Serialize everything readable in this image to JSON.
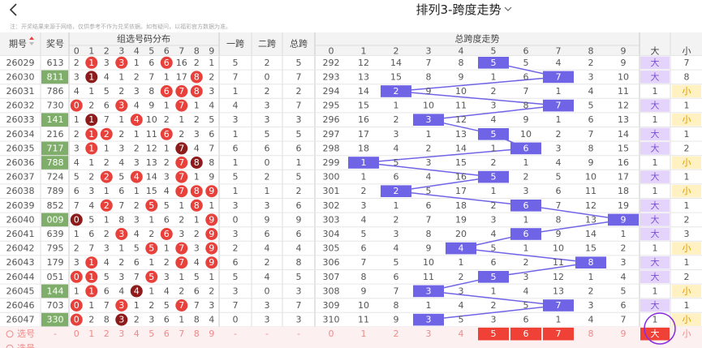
{
  "header": {
    "title": "排列3-跨度走势",
    "note": "注：开奖结果来源于网络，仅供参考不作为兑奖依据。如有疑问，以福彩官方数据为准。"
  },
  "table": {
    "columns": {
      "issue": "期号",
      "award": "奖号",
      "dist": "组选号码分布",
      "kua1": "一跨",
      "kua2": "二跨",
      "kua": "总跨",
      "trend": "总跨度走势",
      "big": "大",
      "small": "小"
    },
    "dist_header": [
      0,
      1,
      2,
      3,
      4,
      5,
      6,
      7,
      8,
      9
    ],
    "trend_header": [
      0,
      1,
      2,
      3,
      4,
      5,
      6,
      7,
      8,
      9
    ],
    "rows": [
      {
        "issue": "26029",
        "award": "613",
        "dist": [
          2,
          1,
          3,
          3,
          1,
          6,
          6,
          16,
          2,
          1
        ],
        "kua1": 5,
        "kua2": 2,
        "kua": 5,
        "trend": [
          292,
          12,
          14,
          7,
          8,
          5,
          5,
          4,
          2,
          9
        ],
        "big": "大",
        "small": 7
      },
      {
        "issue": "26030",
        "award": "811",
        "dist": [
          3,
          1,
          4,
          1,
          2,
          7,
          1,
          17,
          8,
          2
        ],
        "kua1": 7,
        "kua2": 0,
        "kua": 7,
        "trend": [
          293,
          13,
          15,
          8,
          9,
          1,
          6,
          7,
          3,
          10
        ],
        "big": "大",
        "small": 8
      },
      {
        "issue": "26031",
        "award": "786",
        "dist": [
          4,
          1,
          5,
          2,
          3,
          8,
          6,
          7,
          8,
          3
        ],
        "kua1": 1,
        "kua2": 2,
        "kua": 2,
        "trend": [
          294,
          14,
          2,
          9,
          10,
          2,
          7,
          1,
          4,
          11
        ],
        "big": 1,
        "small": "小"
      },
      {
        "issue": "26032",
        "award": "730",
        "dist": [
          0,
          2,
          6,
          3,
          4,
          9,
          1,
          7,
          1,
          4
        ],
        "kua1": 4,
        "kua2": 3,
        "kua": 7,
        "trend": [
          295,
          15,
          1,
          10,
          11,
          3,
          8,
          7,
          5,
          12
        ],
        "big": "大",
        "small": 1
      },
      {
        "issue": "26033",
        "award": "141",
        "dist": [
          1,
          1,
          7,
          1,
          4,
          10,
          2,
          1,
          2,
          5
        ],
        "kua1": 3,
        "kua2": 3,
        "kua": 3,
        "trend": [
          296,
          16,
          2,
          3,
          12,
          4,
          9,
          1,
          6,
          13
        ],
        "big": 1,
        "small": "小"
      },
      {
        "issue": "26034",
        "award": "216",
        "dist": [
          2,
          1,
          2,
          2,
          1,
          11,
          6,
          2,
          3,
          6
        ],
        "kua1": 1,
        "kua2": 5,
        "kua": 5,
        "trend": [
          297,
          17,
          3,
          1,
          13,
          5,
          10,
          2,
          7,
          14
        ],
        "big": "大",
        "small": 1
      },
      {
        "issue": "26035",
        "award": "717",
        "dist": [
          3,
          1,
          1,
          3,
          2,
          12,
          1,
          7,
          4,
          7
        ],
        "kua1": 6,
        "kua2": 6,
        "kua": 6,
        "trend": [
          298,
          18,
          4,
          2,
          14,
          1,
          6,
          3,
          8,
          15
        ],
        "big": "大",
        "small": 2
      },
      {
        "issue": "26036",
        "award": "788",
        "dist": [
          4,
          1,
          2,
          4,
          3,
          13,
          2,
          7,
          8,
          8
        ],
        "kua1": 1,
        "kua2": 0,
        "kua": 1,
        "trend": [
          299,
          1,
          5,
          3,
          15,
          2,
          1,
          4,
          9,
          16
        ],
        "big": 1,
        "small": "小"
      },
      {
        "issue": "26037",
        "award": "724",
        "dist": [
          5,
          2,
          2,
          5,
          4,
          14,
          3,
          7,
          1,
          9
        ],
        "kua1": 5,
        "kua2": 2,
        "kua": 5,
        "trend": [
          300,
          1,
          6,
          4,
          16,
          5,
          2,
          5,
          10,
          17
        ],
        "big": "大",
        "small": 1
      },
      {
        "issue": "26038",
        "award": "789",
        "dist": [
          6,
          3,
          1,
          6,
          1,
          15,
          4,
          7,
          8,
          9
        ],
        "kua1": 1,
        "kua2": 1,
        "kua": 2,
        "trend": [
          301,
          2,
          2,
          5,
          17,
          1,
          3,
          6,
          11,
          18
        ],
        "big": 1,
        "small": "小"
      },
      {
        "issue": "26039",
        "award": "852",
        "dist": [
          7,
          4,
          2,
          7,
          2,
          5,
          5,
          1,
          8,
          1
        ],
        "kua1": 3,
        "kua2": 3,
        "kua": 6,
        "trend": [
          302,
          3,
          1,
          6,
          18,
          2,
          6,
          7,
          12,
          19
        ],
        "big": "大",
        "small": 1
      },
      {
        "issue": "26040",
        "award": "009",
        "dist": [
          0,
          5,
          1,
          8,
          3,
          1,
          6,
          2,
          1,
          9
        ],
        "kua1": 0,
        "kua2": 9,
        "kua": 9,
        "trend": [
          303,
          4,
          2,
          7,
          19,
          3,
          1,
          8,
          13,
          9
        ],
        "big": "大",
        "small": 2
      },
      {
        "issue": "26041",
        "award": "639",
        "dist": [
          1,
          6,
          2,
          3,
          4,
          2,
          6,
          3,
          2,
          9
        ],
        "kua1": 3,
        "kua2": 6,
        "kua": 6,
        "trend": [
          304,
          5,
          3,
          8,
          20,
          4,
          6,
          9,
          14,
          1
        ],
        "big": "大",
        "small": 3
      },
      {
        "issue": "26042",
        "award": "795",
        "dist": [
          2,
          7,
          3,
          1,
          5,
          5,
          1,
          7,
          3,
          9
        ],
        "kua1": 2,
        "kua2": 4,
        "kua": 4,
        "trend": [
          305,
          6,
          4,
          9,
          4,
          5,
          1,
          10,
          15,
          2
        ],
        "big": 1,
        "small": "小"
      },
      {
        "issue": "26043",
        "award": "179",
        "dist": [
          3,
          1,
          4,
          2,
          6,
          1,
          2,
          7,
          4,
          9
        ],
        "kua1": 6,
        "kua2": 2,
        "kua": 8,
        "trend": [
          306,
          7,
          5,
          10,
          1,
          6,
          2,
          11,
          8,
          3
        ],
        "big": "大",
        "small": 1
      },
      {
        "issue": "26044",
        "award": "051",
        "dist": [
          0,
          1,
          5,
          3,
          7,
          5,
          3,
          1,
          5,
          1
        ],
        "kua1": 5,
        "kua2": 4,
        "kua": 5,
        "trend": [
          307,
          8,
          6,
          11,
          2,
          5,
          3,
          12,
          1,
          4
        ],
        "big": "大",
        "small": 2
      },
      {
        "issue": "26045",
        "award": "144",
        "dist": [
          1,
          1,
          6,
          4,
          4,
          1,
          4,
          2,
          6,
          2
        ],
        "kua1": 3,
        "kua2": 0,
        "kua": 3,
        "trend": [
          308,
          9,
          7,
          3,
          3,
          1,
          4,
          13,
          2,
          5
        ],
        "big": 1,
        "small": "小"
      },
      {
        "issue": "26046",
        "award": "703",
        "dist": [
          0,
          1,
          7,
          3,
          1,
          2,
          5,
          7,
          7,
          3
        ],
        "kua1": 7,
        "kua2": 3,
        "kua": 7,
        "trend": [
          309,
          10,
          8,
          1,
          4,
          2,
          5,
          7,
          3,
          6
        ],
        "big": "大",
        "small": 1
      },
      {
        "issue": "26047",
        "award": "330",
        "dist": [
          0,
          2,
          8,
          3,
          2,
          3,
          6,
          1,
          8,
          4
        ],
        "kua1": 0,
        "kua2": 3,
        "kua": 3,
        "trend": [
          310,
          11,
          9,
          3,
          5,
          3,
          6,
          1,
          4,
          7
        ],
        "big": 1,
        "small": "小"
      }
    ],
    "select_row": {
      "label": "选号",
      "award": "-",
      "dist": [
        0,
        1,
        2,
        3,
        4,
        5,
        6,
        7,
        8,
        9
      ],
      "kua1": "-",
      "kua2": "-",
      "kua": "-",
      "trend": [
        0,
        1,
        2,
        3,
        4,
        5,
        6,
        7,
        8,
        9
      ],
      "trend_selected": [
        5,
        6,
        7
      ],
      "big": "大",
      "small": "小"
    },
    "partial_row": {
      "label": "选号"
    }
  }
}
